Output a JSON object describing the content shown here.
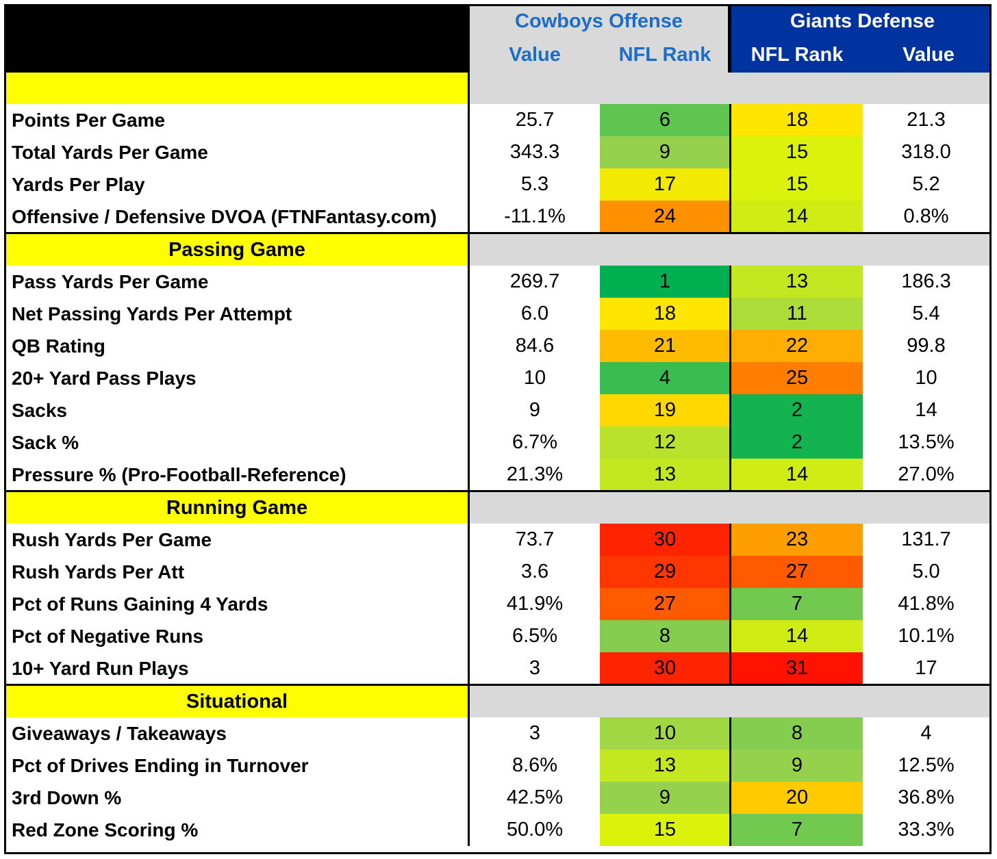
{
  "header": {
    "offense_title": "Cowboys Offense",
    "defense_title": "Giants Defense",
    "col_value": "Value",
    "col_rank": "NFL Rank"
  },
  "sections": [
    {
      "title": "",
      "rows": [
        {
          "label": "Points Per Game",
          "off_value": "25.7",
          "off_rank": "6",
          "def_rank": "18",
          "def_value": "21.3"
        },
        {
          "label": "Total Yards Per Game",
          "off_value": "343.3",
          "off_rank": "9",
          "def_rank": "15",
          "def_value": "318.0"
        },
        {
          "label": "Yards Per Play",
          "off_value": "5.3",
          "off_rank": "17",
          "def_rank": "15",
          "def_value": "5.2"
        },
        {
          "label": "Offensive / Defensive DVOA (FTNFantasy.com)",
          "off_value": "-11.1%",
          "off_rank": "24",
          "def_rank": "14",
          "def_value": "0.8%"
        }
      ]
    },
    {
      "title": "Passing Game",
      "rows": [
        {
          "label": "Pass Yards Per Game",
          "off_value": "269.7",
          "off_rank": "1",
          "def_rank": "13",
          "def_value": "186.3"
        },
        {
          "label": "Net Passing Yards Per Attempt",
          "off_value": "6.0",
          "off_rank": "18",
          "def_rank": "11",
          "def_value": "5.4"
        },
        {
          "label": "QB Rating",
          "off_value": "84.6",
          "off_rank": "21",
          "def_rank": "22",
          "def_value": "99.8"
        },
        {
          "label": "20+ Yard Pass Plays",
          "off_value": "10",
          "off_rank": "4",
          "def_rank": "25",
          "def_value": "10"
        },
        {
          "label": "Sacks",
          "off_value": "9",
          "off_rank": "19",
          "def_rank": "2",
          "def_value": "14"
        },
        {
          "label": "Sack %",
          "off_value": "6.7%",
          "off_rank": "12",
          "def_rank": "2",
          "def_value": "13.5%"
        },
        {
          "label": "Pressure % (Pro-Football-Reference)",
          "off_value": "21.3%",
          "off_rank": "13",
          "def_rank": "14",
          "def_value": "27.0%"
        }
      ]
    },
    {
      "title": "Running Game",
      "rows": [
        {
          "label": "Rush Yards Per Game",
          "off_value": "73.7",
          "off_rank": "30",
          "def_rank": "23",
          "def_value": "131.7"
        },
        {
          "label": "Rush Yards Per Att",
          "off_value": "3.6",
          "off_rank": "29",
          "def_rank": "27",
          "def_value": "5.0"
        },
        {
          "label": "Pct of Runs Gaining 4 Yards",
          "off_value": "41.9%",
          "off_rank": "27",
          "def_rank": "7",
          "def_value": "41.8%"
        },
        {
          "label": "Pct of Negative Runs",
          "off_value": "6.5%",
          "off_rank": "8",
          "def_rank": "14",
          "def_value": "10.1%"
        },
        {
          "label": "10+ Yard Run Plays",
          "off_value": "3",
          "off_rank": "30",
          "def_rank": "31",
          "def_value": "17"
        }
      ]
    },
    {
      "title": "Situational",
      "rows": [
        {
          "label": "Giveaways / Takeaways",
          "off_value": "3",
          "off_rank": "10",
          "def_rank": "8",
          "def_value": "4"
        },
        {
          "label": "Pct of Drives Ending in Turnover",
          "off_value": "8.6%",
          "off_rank": "13",
          "def_rank": "9",
          "def_value": "12.5%"
        },
        {
          "label": "3rd Down %",
          "off_value": "42.5%",
          "off_rank": "9",
          "def_rank": "20",
          "def_value": "36.8%"
        },
        {
          "label": "Red Zone Scoring %",
          "off_value": "50.0%",
          "off_rank": "15",
          "def_rank": "7",
          "def_value": "33.3%"
        }
      ]
    }
  ]
}
